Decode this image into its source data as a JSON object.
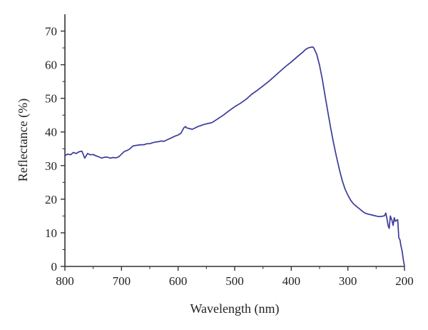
{
  "chart_data": {
    "type": "line",
    "xlabel": "Wavelength (nm)",
    "ylabel": "Reflectance (%)",
    "xlim": [
      800,
      200
    ],
    "ylim": [
      0,
      75
    ],
    "x_reversed": true,
    "grid": false,
    "xticks": [
      800,
      700,
      600,
      500,
      400,
      300,
      200
    ],
    "yticks": [
      0,
      10,
      20,
      30,
      40,
      50,
      60,
      70
    ],
    "line_color": "#3b3b9a",
    "series": [
      {
        "x": [
          800,
          795,
          790,
          785,
          780,
          775,
          770,
          765,
          760,
          755,
          750,
          745,
          740,
          735,
          730,
          725,
          720,
          715,
          710,
          705,
          700,
          695,
          690,
          685,
          680,
          675,
          670,
          665,
          660,
          655,
          650,
          645,
          640,
          635,
          630,
          625,
          620,
          615,
          610,
          605,
          600,
          595,
          590,
          587,
          585,
          580,
          575,
          570,
          565,
          560,
          555,
          550,
          545,
          540,
          530,
          520,
          510,
          500,
          490,
          480,
          470,
          460,
          450,
          440,
          430,
          420,
          410,
          400,
          390,
          380,
          375,
          370,
          365,
          362,
          360,
          355,
          350,
          345,
          340,
          335,
          330,
          325,
          320,
          315,
          310,
          305,
          300,
          295,
          290,
          285,
          280,
          275,
          270,
          265,
          260,
          255,
          250,
          245,
          240,
          235,
          233,
          231,
          229,
          227,
          225,
          222,
          220,
          218,
          216,
          214,
          212,
          210,
          208,
          206,
          204,
          202,
          200
        ],
        "y": [
          33.0,
          33.4,
          33.2,
          33.9,
          33.6,
          34.1,
          34.3,
          32.2,
          33.6,
          33.2,
          33.3,
          32.9,
          32.6,
          32.2,
          32.5,
          32.5,
          32.2,
          32.4,
          32.3,
          32.6,
          33.4,
          34.2,
          34.5,
          35.0,
          35.8,
          36.0,
          36.1,
          36.2,
          36.2,
          36.5,
          36.5,
          36.8,
          37.0,
          37.1,
          37.3,
          37.2,
          37.6,
          38.0,
          38.4,
          38.8,
          39.1,
          39.6,
          41.2,
          41.6,
          41.2,
          41.0,
          40.8,
          41.2,
          41.6,
          41.9,
          42.2,
          42.4,
          42.6,
          42.8,
          43.9,
          45.0,
          46.3,
          47.5,
          48.5,
          49.7,
          51.2,
          52.4,
          53.7,
          55.0,
          56.5,
          58.0,
          59.5,
          60.8,
          62.3,
          63.7,
          64.5,
          65.0,
          65.2,
          65.3,
          64.9,
          63.1,
          59.8,
          55.5,
          50.5,
          45.6,
          40.8,
          36.5,
          32.5,
          28.8,
          25.6,
          23.0,
          21.2,
          19.7,
          18.6,
          17.9,
          17.2,
          16.5,
          15.9,
          15.6,
          15.4,
          15.2,
          15.0,
          14.8,
          14.9,
          15.1,
          15.9,
          14.3,
          12.2,
          11.3,
          15.0,
          13.7,
          12.2,
          14.5,
          13.4,
          13.7,
          13.9,
          8.5,
          7.9,
          6.0,
          4.5,
          2.0,
          0.2
        ]
      }
    ]
  }
}
